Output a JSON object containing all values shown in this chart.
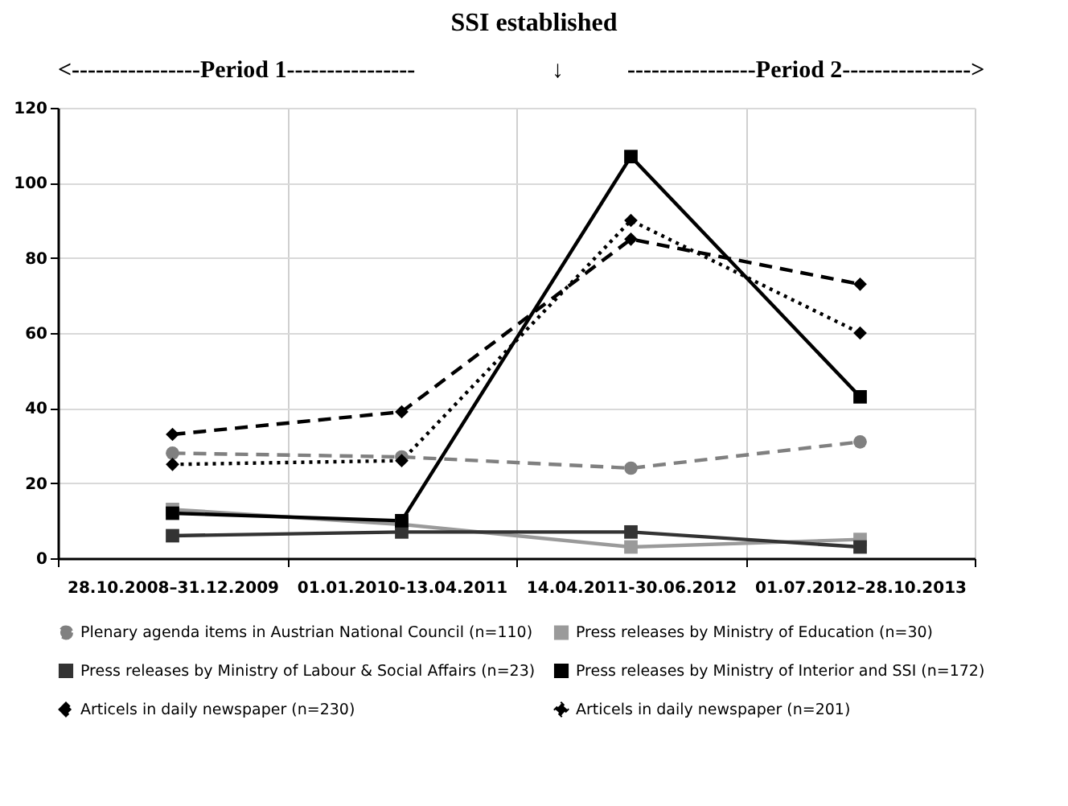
{
  "chart_data": {
    "type": "line",
    "title": "SSI established",
    "annotations": [
      "<----------------Period 1----------------",
      "↓",
      "----------------Period 2---------------->"
    ],
    "categories": [
      "28.10.2008–31.12.2009",
      "01.01.2010-13.04.2011",
      "14.04.2011-30.06.2012",
      "01.07.2012–28.10.2013"
    ],
    "series": [
      {
        "name": "Plenary agenda items in Austrian National Council (n=110)",
        "color": "#808080",
        "marker": "circle",
        "line_style": "dashed",
        "values": [
          28,
          27,
          24,
          31
        ]
      },
      {
        "name": "Press releases by Ministry of Education (n=30)",
        "color": "#9a9a9a",
        "marker": "square",
        "line_style": "solid",
        "values": [
          13,
          9,
          3,
          5
        ]
      },
      {
        "name": "Press releases by Ministry of Labour & Social Affairs (n=23)",
        "color": "#333333",
        "marker": "square",
        "line_style": "solid",
        "values": [
          6,
          7,
          7,
          3
        ]
      },
      {
        "name": "Press releases by Ministry of Interior and SSI (n=172)",
        "color": "#000000",
        "marker": "square",
        "line_style": "solid",
        "values": [
          12,
          10,
          107,
          43
        ]
      },
      {
        "name": "Articels in daily newspaper (n=230)",
        "color": "#000000",
        "marker": "diamond",
        "line_style": "dashed",
        "values": [
          33,
          39,
          85,
          73
        ]
      },
      {
        "name": "Articels in daily newspaper (n=201)",
        "color": "#000000",
        "marker": "diamond",
        "line_style": "dotted",
        "values": [
          25,
          26,
          90,
          60
        ]
      }
    ],
    "ylim": [
      0,
      120
    ],
    "yticks": [
      0,
      20,
      40,
      60,
      80,
      100,
      120
    ],
    "grid": true,
    "legend": "bottom"
  }
}
